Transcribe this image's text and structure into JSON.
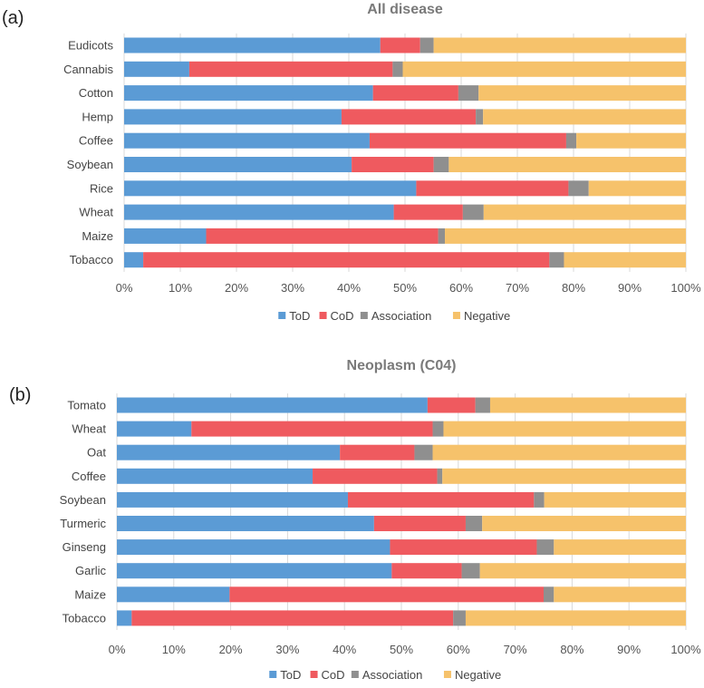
{
  "colors": {
    "ToD": "#5b9bd5",
    "CoD": "#ef5a5f",
    "Association": "#8f8f8f",
    "Negative": "#f6c26b"
  },
  "chart_data": [
    {
      "type": "bar",
      "orientation": "horizontal-stacked-100",
      "panel_label": "(a)",
      "title": "All disease",
      "categories": [
        "Eudicots",
        "Cannabis",
        "Cotton",
        "Hemp",
        "Coffee",
        "Soybean",
        "Rice",
        "Wheat",
        "Maize",
        "Tobacco"
      ],
      "series": [
        {
          "name": "ToD",
          "values": [
            45.6,
            11.6,
            44.3,
            38.7,
            43.7,
            40.5,
            52.0,
            48.0,
            14.6,
            3.4
          ]
        },
        {
          "name": "CoD",
          "values": [
            7.1,
            36.2,
            15.2,
            23.9,
            35.0,
            14.6,
            27.1,
            12.3,
            41.3,
            72.3
          ]
        },
        {
          "name": "Association",
          "values": [
            2.4,
            1.8,
            3.6,
            1.3,
            1.8,
            2.7,
            3.6,
            3.7,
            1.2,
            2.6
          ]
        },
        {
          "name": "Negative",
          "values": [
            44.9,
            50.4,
            36.9,
            36.1,
            19.5,
            42.2,
            17.3,
            36.0,
            42.9,
            21.7
          ]
        }
      ],
      "xlim": [
        0,
        100
      ],
      "x_ticks": [
        "0%",
        "10%",
        "20%",
        "30%",
        "40%",
        "50%",
        "60%",
        "70%",
        "80%",
        "90%",
        "100%"
      ],
      "legend": [
        "ToD",
        "CoD",
        "Association",
        "Negative"
      ],
      "legend_position": "bottom",
      "grid": true
    },
    {
      "type": "bar",
      "orientation": "horizontal-stacked-100",
      "panel_label": "(b)",
      "title": "Neoplasm (C04)",
      "categories": [
        "Tomato",
        "Wheat",
        "Oat",
        "Coffee",
        "Soybean",
        "Turmeric",
        "Ginseng",
        "Garlic",
        "Maize",
        "Tobacco"
      ],
      "series": [
        {
          "name": "ToD",
          "values": [
            54.6,
            13.1,
            39.2,
            34.4,
            40.6,
            45.2,
            48.0,
            48.3,
            19.8,
            2.6
          ]
        },
        {
          "name": "CoD",
          "values": [
            8.4,
            42.4,
            13.1,
            21.9,
            32.7,
            16.1,
            25.8,
            12.3,
            55.2,
            56.5
          ]
        },
        {
          "name": "Association",
          "values": [
            2.6,
            1.9,
            3.2,
            0.9,
            1.8,
            2.9,
            3.0,
            3.2,
            1.8,
            2.2
          ]
        },
        {
          "name": "Negative",
          "values": [
            34.4,
            42.6,
            44.5,
            42.8,
            24.9,
            35.8,
            23.2,
            36.2,
            23.2,
            38.7
          ]
        }
      ],
      "xlim": [
        0,
        100
      ],
      "x_ticks": [
        "0%",
        "10%",
        "20%",
        "30%",
        "40%",
        "50%",
        "60%",
        "70%",
        "80%",
        "90%",
        "100%"
      ],
      "legend": [
        "ToD",
        "CoD",
        "Association",
        "Negative"
      ],
      "legend_position": "bottom",
      "grid": true
    }
  ]
}
